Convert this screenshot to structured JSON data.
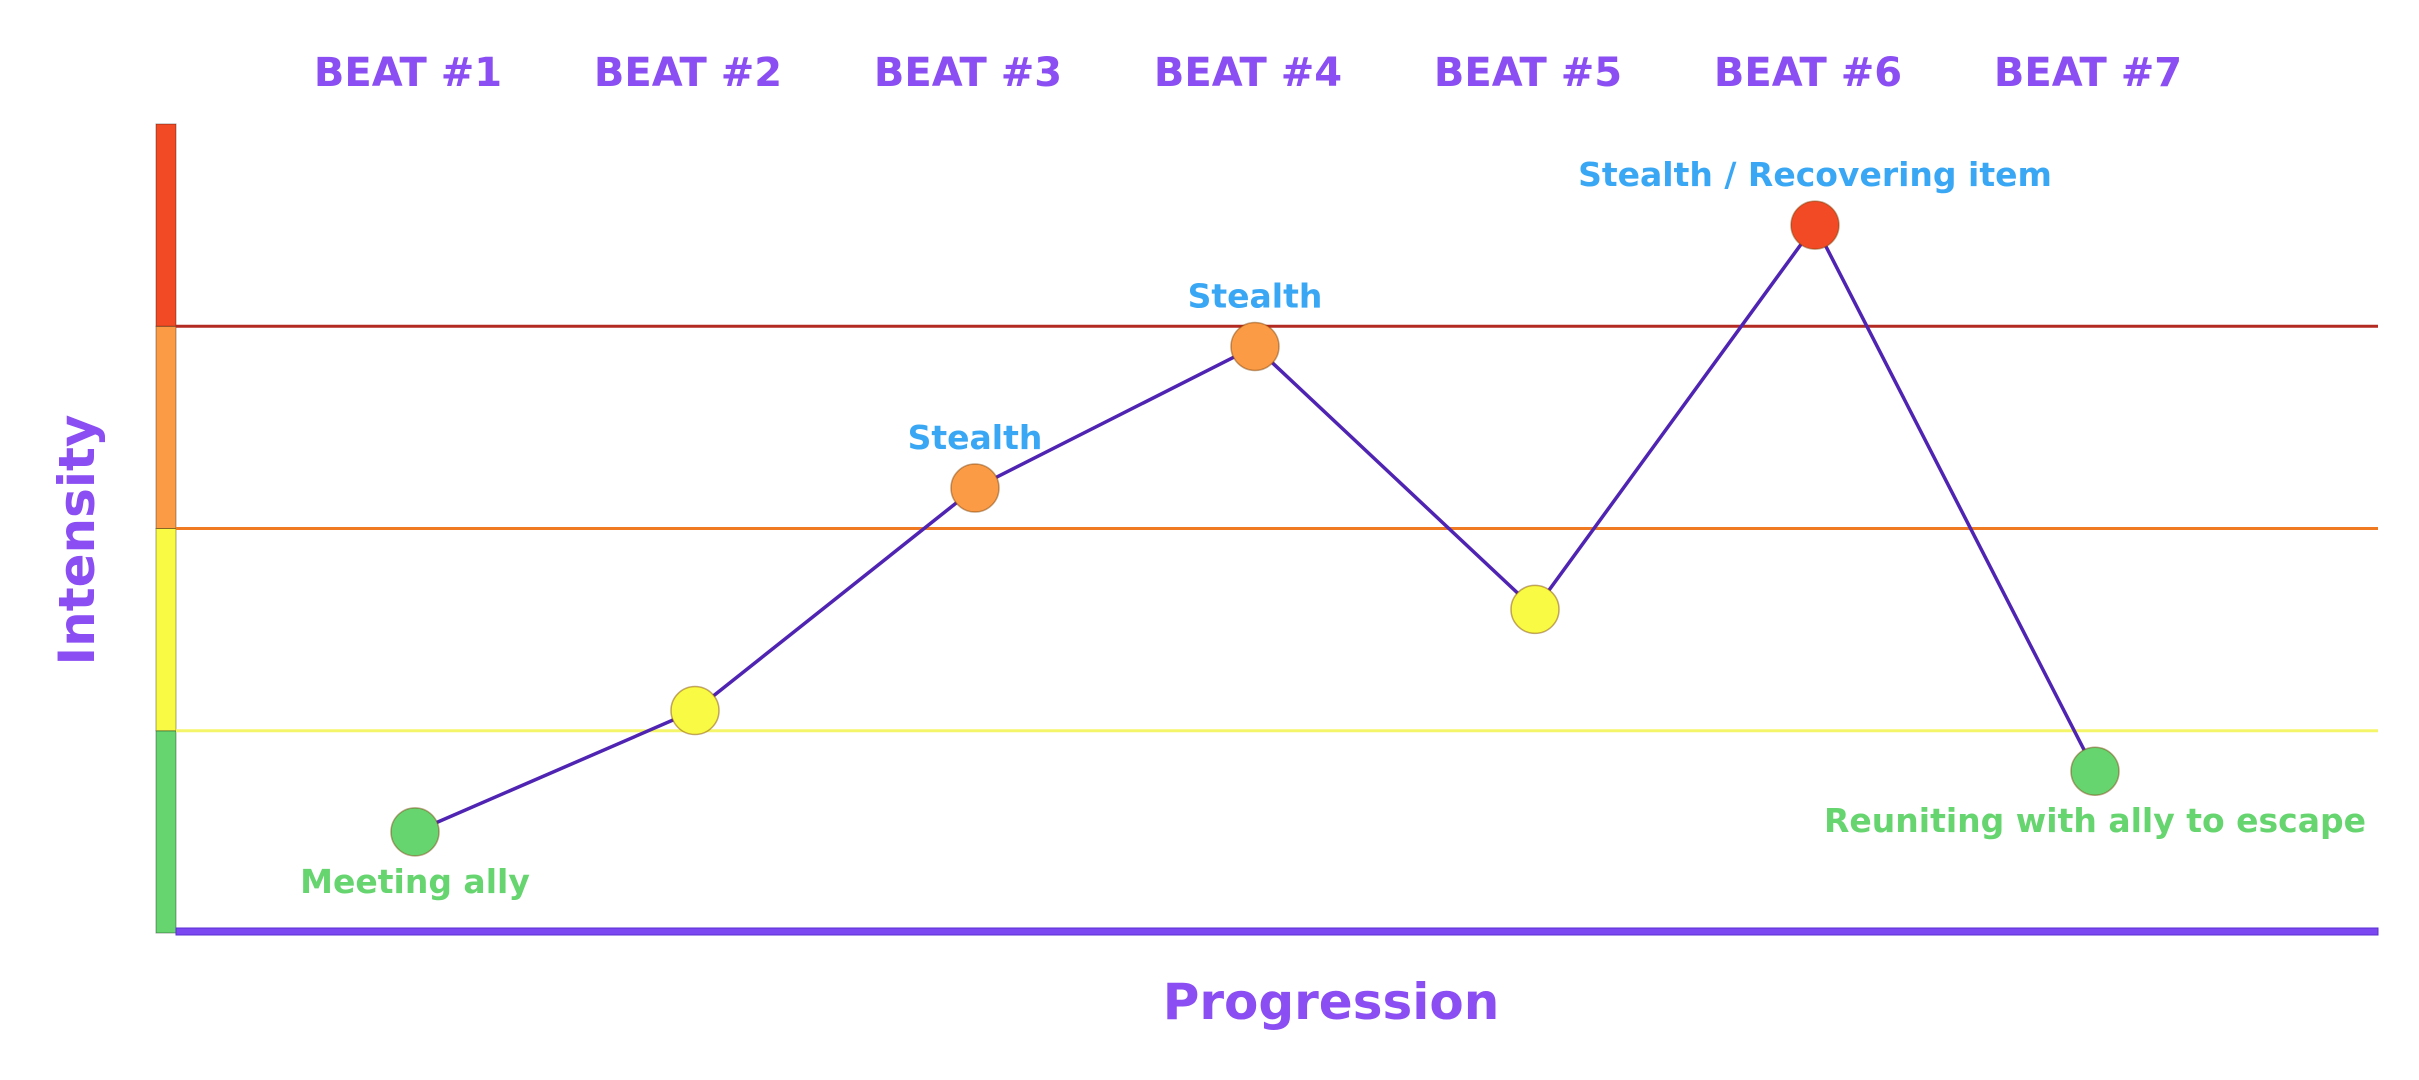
{
  "chart_data": {
    "type": "line",
    "title": "",
    "xlabel": "Progression",
    "ylabel": "Intensity",
    "categories": [
      "BEAT #1",
      "BEAT #2",
      "BEAT #3",
      "BEAT #4",
      "BEAT #5",
      "BEAT #6",
      "BEAT #7"
    ],
    "values": [
      0.5,
      1.1,
      2.2,
      2.9,
      1.6,
      3.5,
      0.8
    ],
    "ylim": [
      0,
      4
    ],
    "zones": [
      {
        "from": 0,
        "to": 1,
        "color": "#66d56f"
      },
      {
        "from": 1,
        "to": 2,
        "color": "#f9fa43"
      },
      {
        "from": 2,
        "to": 3,
        "color": "#fb9b45"
      },
      {
        "from": 3,
        "to": 4,
        "color": "#f14a24"
      }
    ],
    "threshold_lines": [
      {
        "value": 1,
        "color": "#f5f56a"
      },
      {
        "value": 2,
        "color": "#f07a22"
      },
      {
        "value": 3,
        "color": "#b32a23"
      }
    ],
    "point_colors": [
      "#66d56f",
      "#f9fa43",
      "#fb9b45",
      "#fb9b45",
      "#f9fa43",
      "#f14a24",
      "#66d56f"
    ],
    "annotations": [
      {
        "index": 0,
        "text": "Meeting ally",
        "position": "below",
        "color": "#66d56f"
      },
      {
        "index": 2,
        "text": "Stealth",
        "position": "above",
        "color": "#3aa7f5"
      },
      {
        "index": 3,
        "text": "Stealth",
        "position": "above",
        "color": "#3aa7f5"
      },
      {
        "index": 5,
        "text": "Stealth / Recovering item",
        "position": "above",
        "color": "#3aa7f5"
      },
      {
        "index": 6,
        "text": "Reuniting with ally to escape",
        "position": "below",
        "color": "#66d56f"
      }
    ],
    "line_color": "#4f24b3",
    "axis_color": "#7a47f0",
    "label_color": "#8a4ef2",
    "grid": false,
    "legend": "none"
  }
}
